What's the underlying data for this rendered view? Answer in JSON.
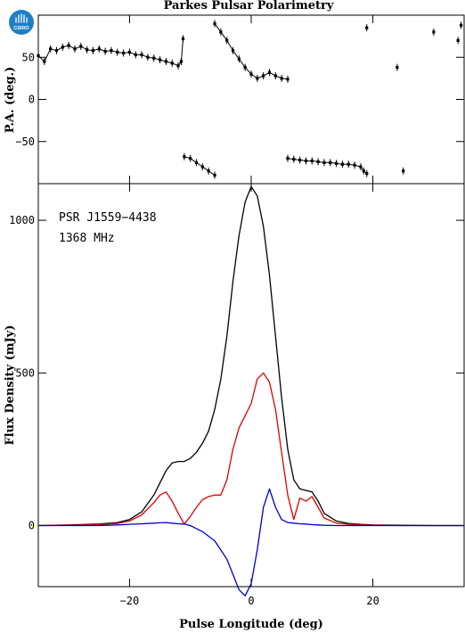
{
  "title": "Parkes Pulsar Polarimetry",
  "logo_text": "CSIRO",
  "colors": {
    "total": "#000000",
    "linear": "#e00000",
    "circular": "#0000cc",
    "axes": "#000000",
    "logo_bg": "#1f7fc4"
  },
  "chart_data": [
    {
      "type": "scatter",
      "ylabel": "P.A. (deg.)",
      "xlim": [
        -35,
        35
      ],
      "ylim": [
        -100,
        100
      ],
      "y_ticks": [
        -50,
        0,
        50
      ],
      "x_ticks": [
        -20,
        0,
        20
      ],
      "segments": [
        {
          "x": [
            -35,
            -34,
            -33,
            -32,
            -31,
            -30,
            -29,
            -28,
            -27,
            -26,
            -25,
            -24,
            -23,
            -22,
            -21,
            -20,
            -19,
            -18,
            -17,
            -16,
            -15,
            -14,
            -13,
            -12,
            -11.5
          ],
          "y": [
            52,
            45,
            60,
            58,
            62,
            64,
            60,
            63,
            59,
            58,
            60,
            57,
            58,
            56,
            55,
            56,
            53,
            53,
            50,
            49,
            47,
            45,
            43,
            40,
            45
          ]
        },
        {
          "x": [
            -11.5,
            -11.2
          ],
          "y": [
            45,
            72
          ]
        },
        {
          "x": [
            -6,
            -5,
            -4,
            -3,
            -2,
            -1,
            0,
            1,
            2,
            3,
            4,
            5,
            6
          ],
          "y": [
            90,
            80,
            70,
            58,
            48,
            38,
            30,
            25,
            28,
            32,
            28,
            25,
            24
          ]
        },
        {
          "x": [
            -11,
            -10,
            -9,
            -8,
            -7,
            -6
          ],
          "y": [
            -68,
            -70,
            -75,
            -80,
            -85,
            -90
          ]
        },
        {
          "x": [
            6,
            7,
            8,
            9,
            10,
            11,
            12,
            13,
            14,
            15,
            16,
            17,
            18,
            18.5,
            19
          ],
          "y": [
            -70,
            -71,
            -72,
            -73,
            -73,
            -74,
            -75,
            -75,
            -76,
            -77,
            -77,
            -78,
            -80,
            -85,
            -88
          ]
        },
        {
          "x": [
            19
          ],
          "y": [
            85
          ]
        },
        {
          "x": [
            24
          ],
          "y": [
            38
          ]
        },
        {
          "x": [
            25
          ],
          "y": [
            -85
          ]
        },
        {
          "x": [
            30
          ],
          "y": [
            80
          ]
        },
        {
          "x": [
            34
          ],
          "y": [
            70
          ]
        },
        {
          "x": [
            34.5
          ],
          "y": [
            88
          ]
        }
      ]
    },
    {
      "type": "line",
      "annotations": [
        "PSR J1559−4438",
        "1368 MHz"
      ],
      "xlabel": "Pulse Longitude (deg)",
      "ylabel": "Flux Density (mJy)",
      "xlim": [
        -35,
        35
      ],
      "ylim": [
        -200,
        1120
      ],
      "y_ticks": [
        0,
        500,
        1000
      ],
      "x_ticks": [
        -20,
        0,
        20
      ],
      "x": [
        -35,
        -30,
        -25,
        -22,
        -20,
        -18,
        -16,
        -15,
        -14,
        -13,
        -12,
        -11,
        -10,
        -9,
        -8,
        -7,
        -6,
        -5,
        -4,
        -3,
        -2,
        -1,
        0,
        1,
        2,
        3,
        4,
        5,
        6,
        7,
        8,
        9,
        10,
        11,
        12,
        14,
        16,
        18,
        20,
        25,
        30,
        35
      ],
      "series": [
        {
          "key": "total",
          "values": [
            0,
            2,
            5,
            10,
            20,
            45,
            100,
            140,
            180,
            205,
            210,
            210,
            220,
            240,
            270,
            310,
            380,
            480,
            620,
            800,
            950,
            1060,
            1110,
            1080,
            980,
            820,
            620,
            420,
            250,
            150,
            120,
            115,
            110,
            80,
            40,
            15,
            7,
            4,
            2,
            1,
            0,
            0
          ]
        },
        {
          "key": "linear",
          "values": [
            0,
            1,
            3,
            7,
            15,
            35,
            75,
            100,
            110,
            80,
            40,
            5,
            30,
            60,
            85,
            95,
            100,
            100,
            150,
            250,
            320,
            360,
            400,
            480,
            500,
            470,
            380,
            240,
            100,
            20,
            90,
            80,
            95,
            60,
            25,
            8,
            4,
            2,
            1,
            0,
            0,
            0
          ]
        },
        {
          "key": "circular",
          "values": [
            0,
            0,
            0,
            2,
            4,
            6,
            8,
            9,
            10,
            8,
            6,
            5,
            0,
            -10,
            -20,
            -35,
            -50,
            -80,
            -110,
            -160,
            -210,
            -230,
            -190,
            -80,
            60,
            120,
            60,
            20,
            10,
            8,
            6,
            5,
            3,
            2,
            1,
            0,
            0,
            0,
            0,
            0,
            0,
            0
          ]
        }
      ]
    }
  ]
}
